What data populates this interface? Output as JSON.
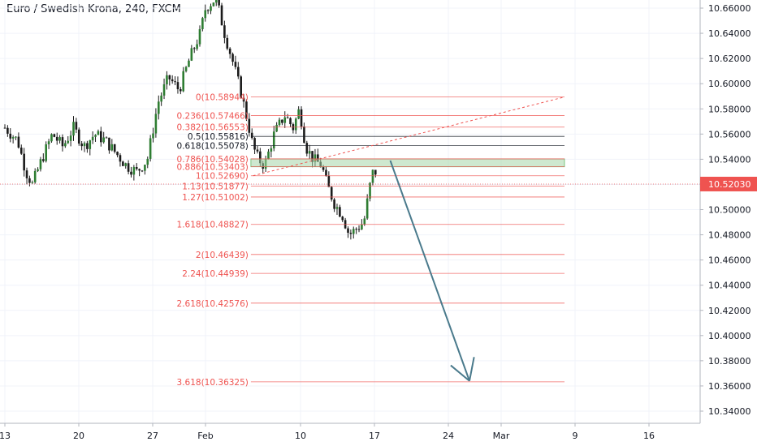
{
  "chart_data": {
    "type": "candlestick",
    "title": "Euro / Swedish Krona, 240, FXCM",
    "ylim": [
      10.33,
      10.67
    ],
    "y_ticks": [
      "10.66000",
      "10.64000",
      "10.62000",
      "10.60000",
      "10.58000",
      "10.56000",
      "10.54000",
      "10.52000",
      "10.50000",
      "10.48000",
      "10.46000",
      "10.44000",
      "10.42000",
      "10.40000",
      "10.38000",
      "10.36000",
      "10.34000"
    ],
    "y_tick_values": [
      10.66,
      10.64,
      10.62,
      10.6,
      10.58,
      10.56,
      10.54,
      10.52,
      10.5,
      10.48,
      10.46,
      10.44,
      10.42,
      10.4,
      10.38,
      10.36,
      10.34
    ],
    "x_ticks": [
      {
        "label": "13",
        "day": 0
      },
      {
        "label": "20",
        "day": 7
      },
      {
        "label": "27",
        "day": 14
      },
      {
        "label": "Feb",
        "day": 19
      },
      {
        "label": "10",
        "day": 28
      },
      {
        "label": "17",
        "day": 35
      },
      {
        "label": "24",
        "day": 42
      },
      {
        "label": "Mar",
        "day": 47
      },
      {
        "label": "9",
        "day": 54
      },
      {
        "label": "16",
        "day": 61
      }
    ],
    "x_range_days": [
      0,
      62.5
    ],
    "current_price": {
      "label": "10.52030",
      "value": 10.5203,
      "color": "#ef5350"
    },
    "close_path": [
      [
        0,
        10.565
      ],
      [
        1.2,
        10.555
      ],
      [
        2,
        10.53
      ],
      [
        2.6,
        10.52
      ],
      [
        3.5,
        10.54
      ],
      [
        4.5,
        10.56
      ],
      [
        5.5,
        10.55
      ],
      [
        6.5,
        10.565
      ],
      [
        7.5,
        10.55
      ],
      [
        8.5,
        10.56
      ],
      [
        9.5,
        10.555
      ],
      [
        10.5,
        10.545
      ],
      [
        11.5,
        10.535
      ],
      [
        12.5,
        10.53
      ],
      [
        13.5,
        10.54
      ],
      [
        14.5,
        10.585
      ],
      [
        15.5,
        10.605
      ],
      [
        16.5,
        10.595
      ],
      [
        17.5,
        10.62
      ],
      [
        18.5,
        10.64
      ],
      [
        19,
        10.66
      ],
      [
        20,
        10.668
      ],
      [
        20.8,
        10.64
      ],
      [
        21.5,
        10.62
      ],
      [
        22.3,
        10.595
      ],
      [
        23,
        10.57
      ],
      [
        23.5,
        10.55
      ],
      [
        24,
        10.54
      ],
      [
        24.6,
        10.535
      ],
      [
        25.5,
        10.56
      ],
      [
        26.5,
        10.575
      ],
      [
        27.3,
        10.565
      ],
      [
        27.9,
        10.58
      ],
      [
        28.5,
        10.55
      ],
      [
        29.2,
        10.54
      ],
      [
        30,
        10.535
      ],
      [
        30.5,
        10.52
      ],
      [
        31.2,
        10.505
      ],
      [
        32,
        10.495
      ],
      [
        32.6,
        10.48
      ],
      [
        33.3,
        10.485
      ],
      [
        34,
        10.49
      ],
      [
        34.6,
        10.52
      ],
      [
        35,
        10.535
      ],
      [
        35.3,
        10.52
      ]
    ],
    "fib": {
      "levels": [
        {
          "label": "0(10.58944)",
          "value": 10.58944,
          "color": "#ef5350"
        },
        {
          "label": "0.236(10.57466)",
          "value": 10.57466,
          "color": "#ef5350"
        },
        {
          "label": "0.382(10.56553)",
          "value": 10.56553,
          "color": "#ef5350"
        },
        {
          "label": "0.5(10.55816)",
          "value": 10.55816,
          "color": "#131722"
        },
        {
          "label": "0.618(10.55078)",
          "value": 10.55078,
          "color": "#131722"
        },
        {
          "label": "0.786(10.54028)",
          "value": 10.54028,
          "color": "#ef5350"
        },
        {
          "label": "0.886(10.53403)",
          "value": 10.53403,
          "color": "#ef5350"
        },
        {
          "label": "1(10.52690)",
          "value": 10.5269,
          "color": "#ef5350"
        },
        {
          "label": "1.13(10.51877)",
          "value": 10.51877,
          "color": "#ef5350"
        },
        {
          "label": "1.27(10.51002)",
          "value": 10.51002,
          "color": "#ef5350"
        },
        {
          "label": "1.618(10.48827)",
          "value": 10.48827,
          "color": "#ef5350"
        },
        {
          "label": "2(10.46439)",
          "value": 10.46439,
          "color": "#ef5350"
        },
        {
          "label": "2.24(10.44939)",
          "value": 10.44939,
          "color": "#ef5350"
        },
        {
          "label": "2.618(10.42576)",
          "value": 10.42576,
          "color": "#ef5350"
        },
        {
          "label": "3.618(10.36325)",
          "value": 10.36325,
          "color": "#ef5350"
        }
      ],
      "start_day": 23.3,
      "end_day": 53,
      "zone_from": 10.534,
      "zone_to": 10.5403,
      "zone_color": "#a5d6a7",
      "trend_from": [
        23.5,
        10.5269
      ],
      "trend_to": [
        53,
        10.58944
      ]
    },
    "arrow": {
      "from": [
        36.5,
        10.539
      ],
      "to": [
        44,
        10.364
      ],
      "color": "#4a7a8c"
    },
    "colors": {
      "up": "#26a69a",
      "down": "#ef5350",
      "body_up": "#2e7d32",
      "body_down": "#1b1b1b",
      "fib_line": "#ef5350",
      "grid": "#f0f3fa"
    }
  }
}
